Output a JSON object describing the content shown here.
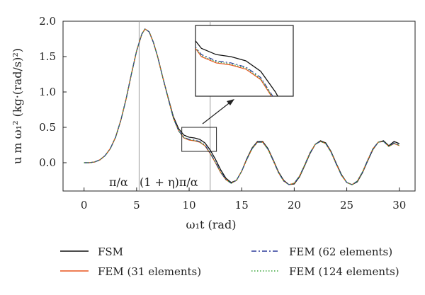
{
  "chart_data": {
    "type": "line",
    "xlabel": "ω₁t (rad)",
    "ylabel": "u m ω₁² (kg·(rad/s)²)",
    "xlim": [
      -2,
      31.5
    ],
    "ylim": [
      -0.4,
      2.0
    ],
    "xticks": [
      0,
      5,
      10,
      15,
      20,
      25,
      30
    ],
    "yticks": [
      -0.0,
      0.5,
      1.0,
      1.5,
      2.0
    ],
    "xtick_labels": [
      "0",
      "5",
      "10",
      "15",
      "20",
      "25",
      "30"
    ],
    "ytick_labels": [
      "0.0",
      "0.5",
      "1.0",
      "1.5",
      "2.0"
    ],
    "vlines": [
      {
        "x": 5.24,
        "label": "π/α"
      },
      {
        "x": 12.0,
        "label": "(1 + η)π/α"
      }
    ],
    "inset": {
      "x_range": [
        9.3,
        12.6
      ],
      "y_range": [
        0.16,
        0.5
      ]
    },
    "grid": false,
    "legend": "bottom",
    "series": [
      {
        "name": "FSM",
        "color": "#111111",
        "dash": "",
        "points": [
          [
            0,
            0
          ],
          [
            0.5,
            0
          ],
          [
            1,
            0.01
          ],
          [
            1.5,
            0.04
          ],
          [
            2,
            0.1
          ],
          [
            2.5,
            0.2
          ],
          [
            3,
            0.36
          ],
          [
            3.5,
            0.6
          ],
          [
            4,
            0.9
          ],
          [
            4.5,
            1.25
          ],
          [
            5,
            1.58
          ],
          [
            5.5,
            1.82
          ],
          [
            5.8,
            1.89
          ],
          [
            6.2,
            1.85
          ],
          [
            6.6,
            1.7
          ],
          [
            7,
            1.5
          ],
          [
            7.5,
            1.2
          ],
          [
            8,
            0.92
          ],
          [
            8.5,
            0.65
          ],
          [
            9,
            0.48
          ],
          [
            9.5,
            0.39
          ],
          [
            10,
            0.36
          ],
          [
            10.5,
            0.35
          ],
          [
            11,
            0.33
          ],
          [
            11.5,
            0.28
          ],
          [
            12,
            0.18
          ],
          [
            12.5,
            0.05
          ],
          [
            13,
            -0.1
          ],
          [
            13.5,
            -0.22
          ],
          [
            14,
            -0.28
          ],
          [
            14.5,
            -0.25
          ],
          [
            15,
            -0.12
          ],
          [
            15.5,
            0.06
          ],
          [
            16,
            0.21
          ],
          [
            16.5,
            0.3
          ],
          [
            17,
            0.3
          ],
          [
            17.5,
            0.2
          ],
          [
            18,
            0.04
          ],
          [
            18.5,
            -0.13
          ],
          [
            19,
            -0.25
          ],
          [
            19.5,
            -0.31
          ],
          [
            20,
            -0.3
          ],
          [
            20.5,
            -0.2
          ],
          [
            21,
            -0.04
          ],
          [
            21.5,
            0.13
          ],
          [
            22,
            0.26
          ],
          [
            22.5,
            0.31
          ],
          [
            23,
            0.28
          ],
          [
            23.5,
            0.16
          ],
          [
            24,
            -0.01
          ],
          [
            24.5,
            -0.17
          ],
          [
            25,
            -0.28
          ],
          [
            25.5,
            -0.31
          ],
          [
            26,
            -0.27
          ],
          [
            26.5,
            -0.14
          ],
          [
            27,
            0.03
          ],
          [
            27.5,
            0.19
          ],
          [
            28,
            0.29
          ],
          [
            28.5,
            0.31
          ],
          [
            29,
            0.24
          ],
          [
            29.5,
            0.3
          ],
          [
            30,
            0.27
          ]
        ]
      },
      {
        "name": "FEM (31 elements)",
        "color": "#e8541c",
        "dash": "",
        "points": [
          [
            0,
            0
          ],
          [
            0.5,
            0
          ],
          [
            1,
            0.01
          ],
          [
            1.5,
            0.04
          ],
          [
            2,
            0.1
          ],
          [
            2.5,
            0.2
          ],
          [
            3,
            0.36
          ],
          [
            3.5,
            0.6
          ],
          [
            4,
            0.9
          ],
          [
            4.5,
            1.25
          ],
          [
            5,
            1.58
          ],
          [
            5.5,
            1.82
          ],
          [
            5.8,
            1.89
          ],
          [
            6.2,
            1.85
          ],
          [
            6.6,
            1.7
          ],
          [
            7,
            1.5
          ],
          [
            7.5,
            1.2
          ],
          [
            8,
            0.91
          ],
          [
            8.5,
            0.63
          ],
          [
            9,
            0.45
          ],
          [
            9.5,
            0.35
          ],
          [
            10,
            0.32
          ],
          [
            10.5,
            0.31
          ],
          [
            11,
            0.29
          ],
          [
            11.5,
            0.24
          ],
          [
            12,
            0.13
          ],
          [
            12.5,
            0.0
          ],
          [
            13,
            -0.14
          ],
          [
            13.5,
            -0.24
          ],
          [
            14,
            -0.29
          ],
          [
            14.5,
            -0.25
          ],
          [
            15,
            -0.12
          ],
          [
            15.5,
            0.05
          ],
          [
            16,
            0.2
          ],
          [
            16.5,
            0.29
          ],
          [
            17,
            0.29
          ],
          [
            17.5,
            0.19
          ],
          [
            18,
            0.03
          ],
          [
            18.5,
            -0.14
          ],
          [
            19,
            -0.26
          ],
          [
            19.5,
            -0.31
          ],
          [
            20,
            -0.29
          ],
          [
            20.5,
            -0.19
          ],
          [
            21,
            -0.03
          ],
          [
            21.5,
            0.14
          ],
          [
            22,
            0.26
          ],
          [
            22.5,
            0.3
          ],
          [
            23,
            0.27
          ],
          [
            23.5,
            0.15
          ],
          [
            24,
            -0.02
          ],
          [
            24.5,
            -0.18
          ],
          [
            25,
            -0.28
          ],
          [
            25.5,
            -0.31
          ],
          [
            26,
            -0.26
          ],
          [
            26.5,
            -0.13
          ],
          [
            27,
            0.04
          ],
          [
            27.5,
            0.2
          ],
          [
            28,
            0.29
          ],
          [
            28.5,
            0.3
          ],
          [
            29,
            0.23
          ],
          [
            29.5,
            0.27
          ],
          [
            30,
            0.24
          ]
        ]
      },
      {
        "name": "FEM (62 elements)",
        "color": "#2b3a9a",
        "dash": "7,3,2,3",
        "points": [
          [
            0,
            0
          ],
          [
            0.5,
            0
          ],
          [
            1,
            0.01
          ],
          [
            1.5,
            0.04
          ],
          [
            2,
            0.1
          ],
          [
            2.5,
            0.2
          ],
          [
            3,
            0.36
          ],
          [
            3.5,
            0.6
          ],
          [
            4,
            0.9
          ],
          [
            4.5,
            1.25
          ],
          [
            5,
            1.58
          ],
          [
            5.5,
            1.82
          ],
          [
            5.8,
            1.89
          ],
          [
            6.2,
            1.85
          ],
          [
            6.6,
            1.7
          ],
          [
            7,
            1.5
          ],
          [
            7.5,
            1.2
          ],
          [
            8,
            0.91
          ],
          [
            8.5,
            0.63
          ],
          [
            9,
            0.45
          ],
          [
            9.5,
            0.36
          ],
          [
            10,
            0.33
          ],
          [
            10.5,
            0.32
          ],
          [
            11,
            0.3
          ],
          [
            11.5,
            0.25
          ],
          [
            12,
            0.14
          ],
          [
            12.5,
            0.01
          ],
          [
            13,
            -0.13
          ],
          [
            13.5,
            -0.24
          ],
          [
            14,
            -0.29
          ],
          [
            14.5,
            -0.25
          ],
          [
            15,
            -0.12
          ],
          [
            15.5,
            0.05
          ],
          [
            16,
            0.2
          ],
          [
            16.5,
            0.29
          ],
          [
            17,
            0.29
          ],
          [
            17.5,
            0.19
          ],
          [
            18,
            0.03
          ],
          [
            18.5,
            -0.14
          ],
          [
            19,
            -0.26
          ],
          [
            19.5,
            -0.31
          ],
          [
            20,
            -0.29
          ],
          [
            20.5,
            -0.19
          ],
          [
            21,
            -0.03
          ],
          [
            21.5,
            0.14
          ],
          [
            22,
            0.26
          ],
          [
            22.5,
            0.3
          ],
          [
            23,
            0.27
          ],
          [
            23.5,
            0.15
          ],
          [
            24,
            -0.02
          ],
          [
            24.5,
            -0.18
          ],
          [
            25,
            -0.28
          ],
          [
            25.5,
            -0.31
          ],
          [
            26,
            -0.26
          ],
          [
            26.5,
            -0.13
          ],
          [
            27,
            0.04
          ],
          [
            27.5,
            0.2
          ],
          [
            28,
            0.29
          ],
          [
            28.5,
            0.3
          ],
          [
            29,
            0.23
          ],
          [
            29.5,
            0.28
          ],
          [
            30,
            0.25
          ]
        ]
      },
      {
        "name": "FEM (124 elements)",
        "color": "#3aa63a",
        "dash": "1.5,2.5",
        "points": [
          [
            0,
            0
          ],
          [
            0.5,
            0
          ],
          [
            1,
            0.01
          ],
          [
            1.5,
            0.04
          ],
          [
            2,
            0.1
          ],
          [
            2.5,
            0.2
          ],
          [
            3,
            0.36
          ],
          [
            3.5,
            0.6
          ],
          [
            4,
            0.9
          ],
          [
            4.5,
            1.25
          ],
          [
            5,
            1.58
          ],
          [
            5.5,
            1.82
          ],
          [
            5.8,
            1.89
          ],
          [
            6.2,
            1.85
          ],
          [
            6.6,
            1.7
          ],
          [
            7,
            1.5
          ],
          [
            7.5,
            1.2
          ],
          [
            8,
            0.91
          ],
          [
            8.5,
            0.63
          ],
          [
            9,
            0.45
          ],
          [
            9.5,
            0.355
          ],
          [
            10,
            0.325
          ],
          [
            10.5,
            0.315
          ],
          [
            11,
            0.295
          ],
          [
            11.5,
            0.245
          ],
          [
            12,
            0.135
          ],
          [
            12.5,
            0.005
          ],
          [
            13,
            -0.135
          ],
          [
            13.5,
            -0.24
          ],
          [
            14,
            -0.29
          ],
          [
            14.5,
            -0.25
          ],
          [
            15,
            -0.12
          ],
          [
            15.5,
            0.05
          ],
          [
            16,
            0.2
          ],
          [
            16.5,
            0.29
          ],
          [
            17,
            0.29
          ],
          [
            17.5,
            0.19
          ],
          [
            18,
            0.03
          ],
          [
            18.5,
            -0.14
          ],
          [
            19,
            -0.26
          ],
          [
            19.5,
            -0.31
          ],
          [
            20,
            -0.29
          ],
          [
            20.5,
            -0.19
          ],
          [
            21,
            -0.03
          ],
          [
            21.5,
            0.14
          ],
          [
            22,
            0.26
          ],
          [
            22.5,
            0.3
          ],
          [
            23,
            0.27
          ],
          [
            23.5,
            0.15
          ],
          [
            24,
            -0.02
          ],
          [
            24.5,
            -0.18
          ],
          [
            25,
            -0.28
          ],
          [
            25.5,
            -0.31
          ],
          [
            26,
            -0.26
          ],
          [
            26.5,
            -0.13
          ],
          [
            27,
            0.04
          ],
          [
            27.5,
            0.2
          ],
          [
            28,
            0.29
          ],
          [
            28.5,
            0.3
          ],
          [
            29,
            0.23
          ],
          [
            29.5,
            0.275
          ],
          [
            30,
            0.245
          ]
        ]
      }
    ]
  }
}
